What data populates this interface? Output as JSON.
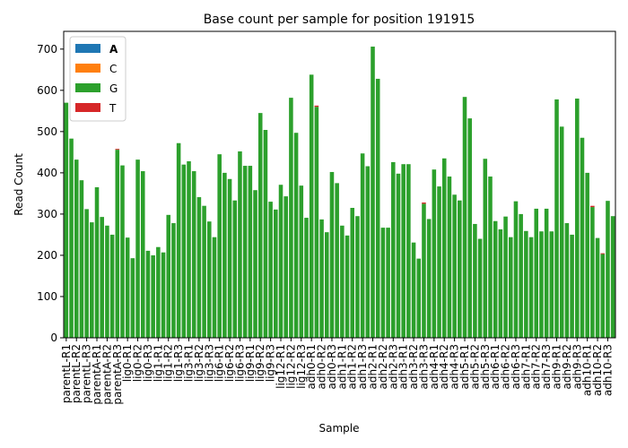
{
  "chart_data": {
    "type": "stacked_bar",
    "title": "Base count per sample for position 191915",
    "x_label": "Sample",
    "y_label": "Read Count",
    "categories": [
      "parentL-R1",
      null,
      "parentL-R2",
      null,
      "parentL-R3",
      null,
      "parentA-R1",
      null,
      "parentA-R2",
      null,
      "parentA-R3",
      null,
      "lig0-R1",
      null,
      "lig0-R2",
      null,
      "lig0-R3",
      null,
      "lig1-R1",
      null,
      "lig1-R2",
      null,
      "lig1-R3",
      null,
      "lig3-R1",
      null,
      "lig3-R2",
      null,
      "lig3-R3",
      null,
      "lig6-R1",
      null,
      "lig6-R2",
      null,
      "lig6-R3",
      null,
      "lig9-R1",
      null,
      "lig9-R2",
      null,
      "lig9-R3",
      null,
      "lig12-R1",
      null,
      "lig12-R2",
      null,
      "lig12-R3",
      null,
      "adh0-R1",
      null,
      "adh0-R2",
      null,
      "adh0-R3",
      null,
      "adh1-R1",
      null,
      "adh1-R2",
      null,
      "adh1-R3",
      null,
      "adh2-R1",
      null,
      "adh2-R2",
      null,
      "adh2-R3",
      null,
      "adh3-R1",
      null,
      "adh3-R2",
      null,
      "adh3-R3",
      null,
      "adh4-R1",
      null,
      "adh4-R2",
      null,
      "adh4-R3",
      null,
      "adh5-R1",
      null,
      "adh5-R2",
      null,
      "adh5-R3",
      null,
      "adh6-R1",
      null,
      "adh6-R2",
      null,
      "adh6-R3",
      null,
      "adh7-R1",
      null,
      "adh7-R2",
      null,
      "adh7-R3",
      null,
      "adh9-R1",
      null,
      "adh9-R2",
      null,
      "adh9-R3",
      null,
      "adh10-R1",
      null,
      "adh10-R2",
      null,
      "adh10-R3",
      null
    ],
    "series": [
      {
        "name": "A",
        "color": "#1f77b4",
        "values": [
          0,
          0,
          0,
          0,
          0,
          0,
          0,
          0,
          0,
          0,
          0,
          0,
          0,
          0,
          0,
          0,
          0,
          0,
          0,
          0,
          0,
          0,
          0,
          0,
          0,
          0,
          0,
          0,
          0,
          0,
          0,
          0,
          0,
          0,
          0,
          0,
          0,
          0,
          0,
          0,
          0,
          0,
          0,
          0,
          0,
          0,
          0,
          0,
          0,
          0,
          0,
          0,
          0,
          0,
          0,
          0,
          0,
          0,
          0,
          0,
          0,
          0,
          0,
          0,
          0,
          0,
          0,
          0,
          0,
          0,
          0,
          0,
          0,
          0,
          0,
          0,
          0,
          0,
          0,
          0,
          0,
          0,
          0,
          0,
          0,
          0,
          0,
          0,
          0,
          0,
          0,
          0,
          0,
          0,
          0,
          0,
          0,
          0,
          0,
          0,
          0,
          0,
          0,
          0,
          0,
          0,
          0,
          0
        ]
      },
      {
        "name": "C",
        "color": "#ff7f0e",
        "values": [
          0,
          0,
          0,
          0,
          0,
          0,
          0,
          0,
          0,
          0,
          0,
          0,
          0,
          0,
          0,
          0,
          0,
          0,
          0,
          0,
          0,
          0,
          0,
          0,
          0,
          0,
          0,
          0,
          0,
          0,
          0,
          0,
          0,
          0,
          0,
          0,
          0,
          0,
          0,
          0,
          0,
          0,
          0,
          0,
          0,
          0,
          0,
          0,
          0,
          0,
          0,
          0,
          0,
          0,
          0,
          0,
          0,
          0,
          0,
          0,
          0,
          0,
          0,
          0,
          0,
          0,
          0,
          0,
          0,
          0,
          0,
          0,
          0,
          0,
          0,
          0,
          0,
          0,
          0,
          0,
          0,
          0,
          0,
          0,
          0,
          0,
          0,
          0,
          0,
          0,
          0,
          0,
          0,
          0,
          0,
          0,
          0,
          0,
          0,
          0,
          0,
          0,
          0,
          0,
          0,
          0,
          0,
          0
        ]
      },
      {
        "name": "G",
        "color": "#2ca02c",
        "values": [
          570,
          483,
          432,
          382,
          312,
          280,
          365,
          293,
          272,
          250,
          456,
          418,
          243,
          193,
          432,
          404,
          211,
          200,
          220,
          207,
          298,
          278,
          472,
          420,
          428,
          404,
          341,
          320,
          282,
          244,
          445,
          400,
          385,
          333,
          452,
          417,
          417,
          358,
          545,
          504,
          330,
          311,
          371,
          343,
          582,
          497,
          369,
          291,
          638,
          560,
          287,
          256,
          402,
          375,
          272,
          248,
          315,
          295,
          447,
          416,
          706,
          628,
          267,
          267,
          426,
          398,
          421,
          421,
          231,
          192,
          325,
          288,
          408,
          367,
          435,
          391,
          347,
          333,
          584,
          532,
          276,
          240,
          434,
          391,
          283,
          263,
          294,
          244,
          331,
          300,
          259,
          244,
          313,
          258,
          313,
          258,
          578,
          512,
          278,
          250,
          580,
          485,
          400,
          317,
          242,
          203,
          332,
          295
        ]
      },
      {
        "name": "T",
        "color": "#d62728",
        "values": [
          0,
          0,
          0,
          0,
          0,
          0,
          0,
          0,
          0,
          0,
          2,
          0,
          0,
          0,
          0,
          0,
          0,
          0,
          0,
          0,
          0,
          0,
          0,
          0,
          0,
          0,
          0,
          0,
          0,
          0,
          0,
          0,
          0,
          0,
          0,
          0,
          0,
          0,
          0,
          0,
          0,
          0,
          0,
          0,
          0,
          0,
          0,
          0,
          0,
          3,
          0,
          0,
          0,
          0,
          0,
          0,
          0,
          0,
          0,
          0,
          0,
          0,
          0,
          0,
          0,
          0,
          0,
          0,
          0,
          0,
          3,
          0,
          0,
          0,
          0,
          0,
          0,
          0,
          0,
          0,
          0,
          0,
          0,
          0,
          0,
          0,
          0,
          0,
          0,
          0,
          0,
          0,
          0,
          0,
          0,
          0,
          0,
          0,
          0,
          0,
          0,
          0,
          0,
          3,
          0,
          2,
          0,
          0
        ]
      }
    ],
    "ylim": [
      0,
      743
    ],
    "yticks": [
      0,
      100,
      200,
      300,
      400,
      500,
      600,
      700
    ],
    "legend": "upper left"
  }
}
